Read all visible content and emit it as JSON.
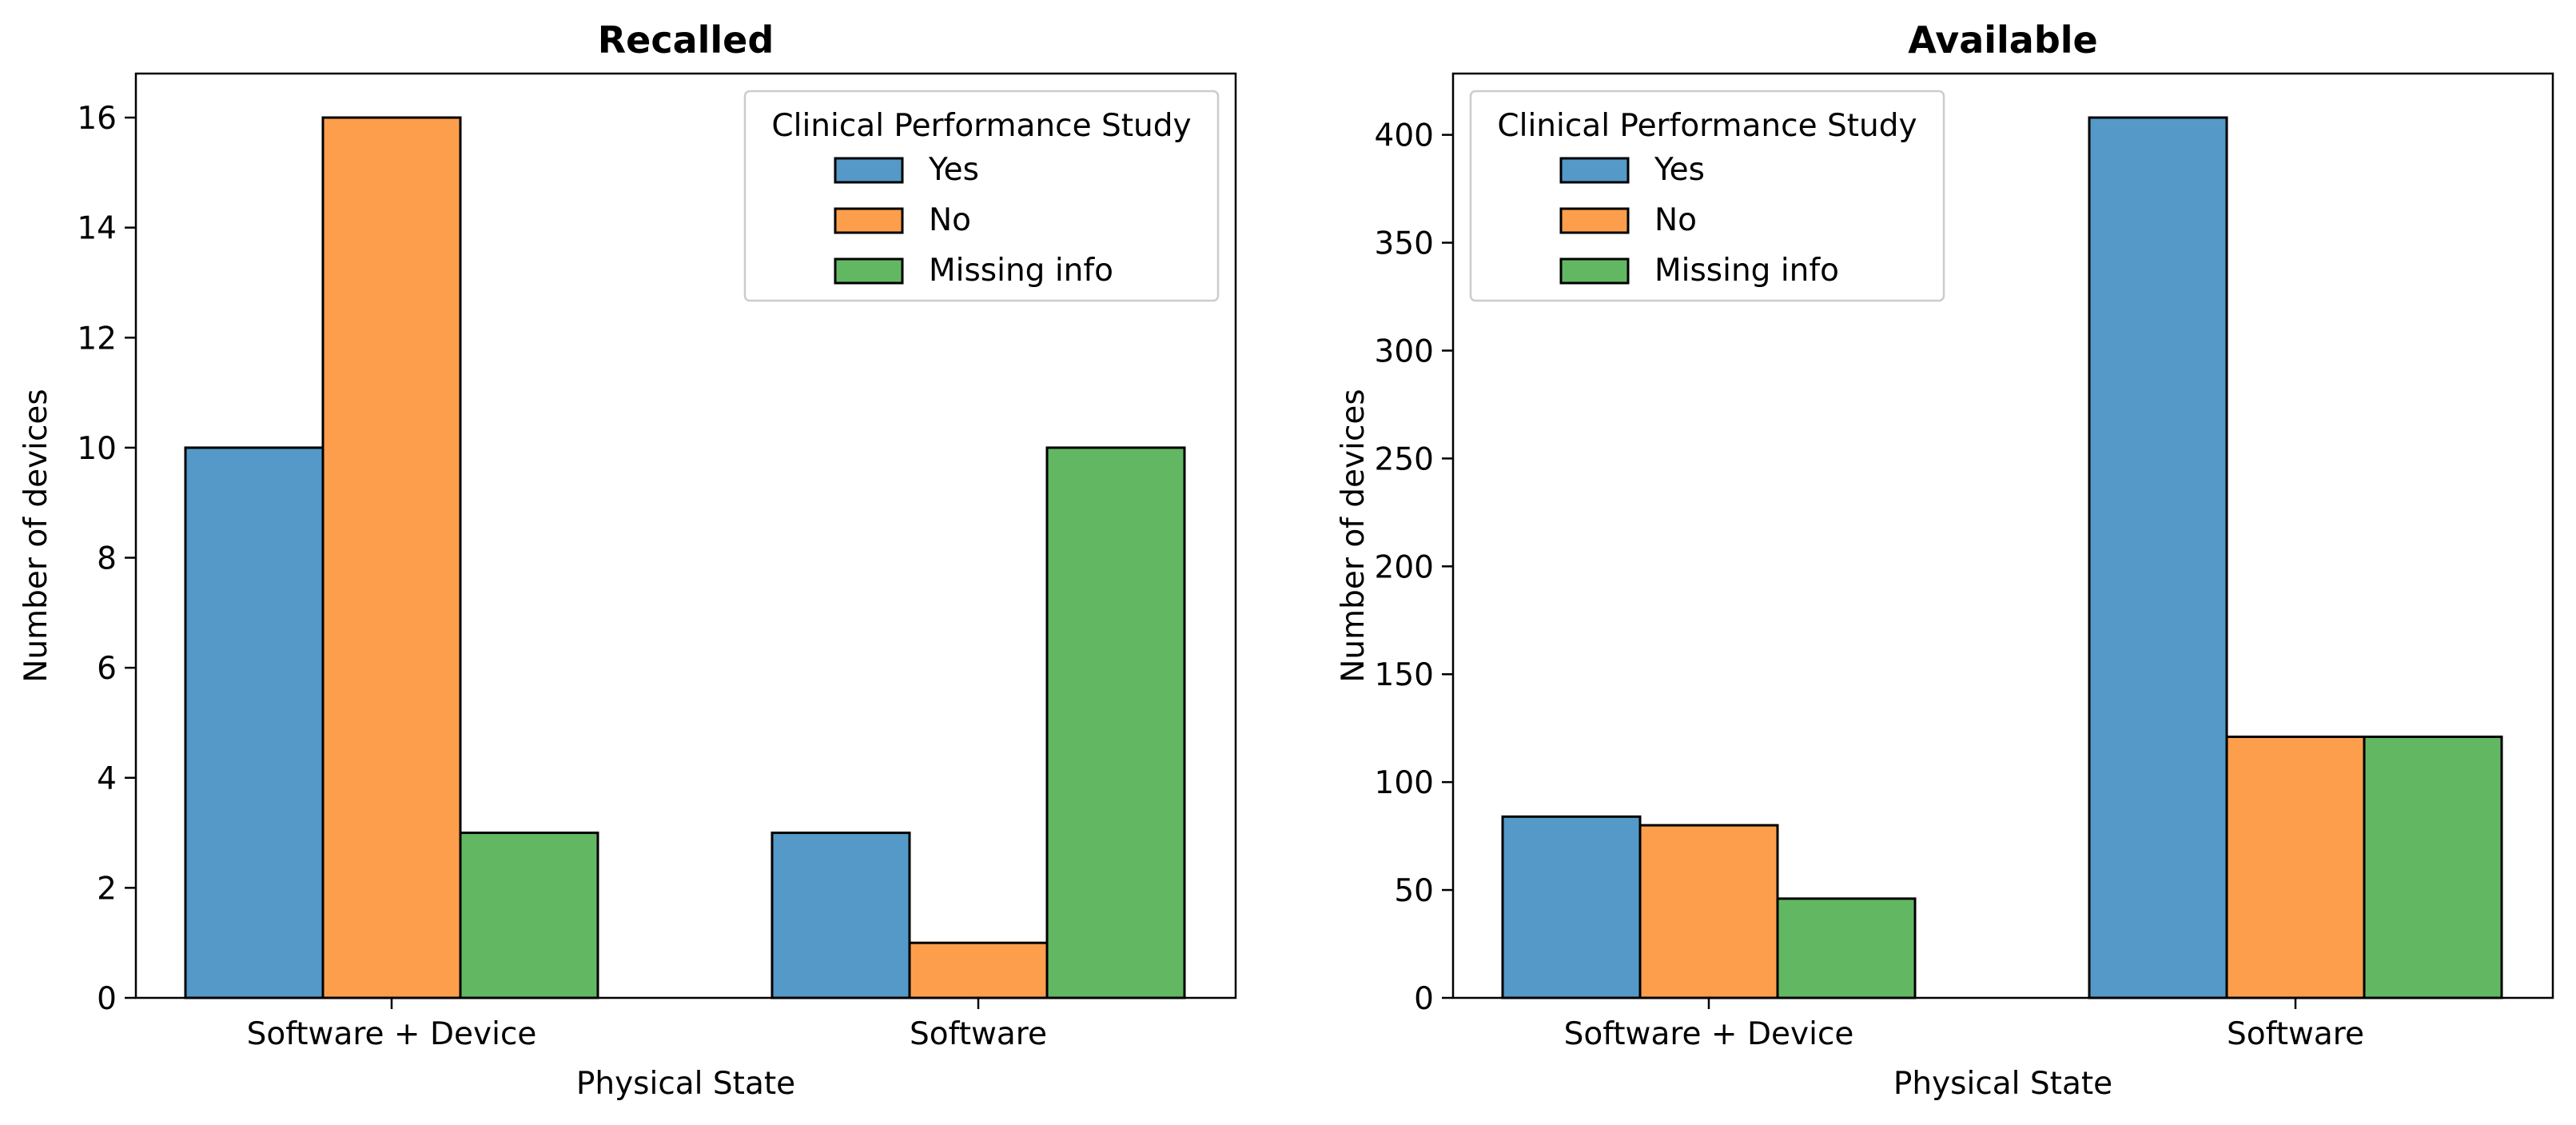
{
  "chart_data": [
    {
      "type": "bar",
      "title": "Recalled",
      "xlabel": "Physical State",
      "ylabel": "Number of devices",
      "categories": [
        "Software + Device",
        "Software"
      ],
      "series": [
        {
          "name": "Yes",
          "values": [
            10,
            3
          ],
          "color": "#5499c7"
        },
        {
          "name": "No",
          "values": [
            16,
            1
          ],
          "color": "#fd9e4c"
        },
        {
          "name": "Missing info",
          "values": [
            3,
            10
          ],
          "color": "#62b862"
        }
      ],
      "ylim": [
        0,
        16.8
      ],
      "yticks": [
        0,
        2,
        4,
        6,
        8,
        10,
        12,
        14,
        16
      ],
      "grid": false,
      "legend": {
        "title": "Clinical Performance Study",
        "placement": "top-right"
      }
    },
    {
      "type": "bar",
      "title": "Available",
      "xlabel": "Physical State",
      "ylabel": "Number of devices",
      "categories": [
        "Software + Device",
        "Software"
      ],
      "series": [
        {
          "name": "Yes",
          "values": [
            84,
            408
          ],
          "color": "#5499c7"
        },
        {
          "name": "No",
          "values": [
            80,
            121
          ],
          "color": "#fd9e4c"
        },
        {
          "name": "Missing info",
          "values": [
            46,
            121
          ],
          "color": "#62b862"
        }
      ],
      "ylim": [
        0,
        428.4
      ],
      "yticks": [
        0,
        50,
        100,
        150,
        200,
        250,
        300,
        350,
        400
      ],
      "grid": false,
      "legend": {
        "title": "Clinical Performance Study",
        "placement": "top-left"
      }
    }
  ]
}
